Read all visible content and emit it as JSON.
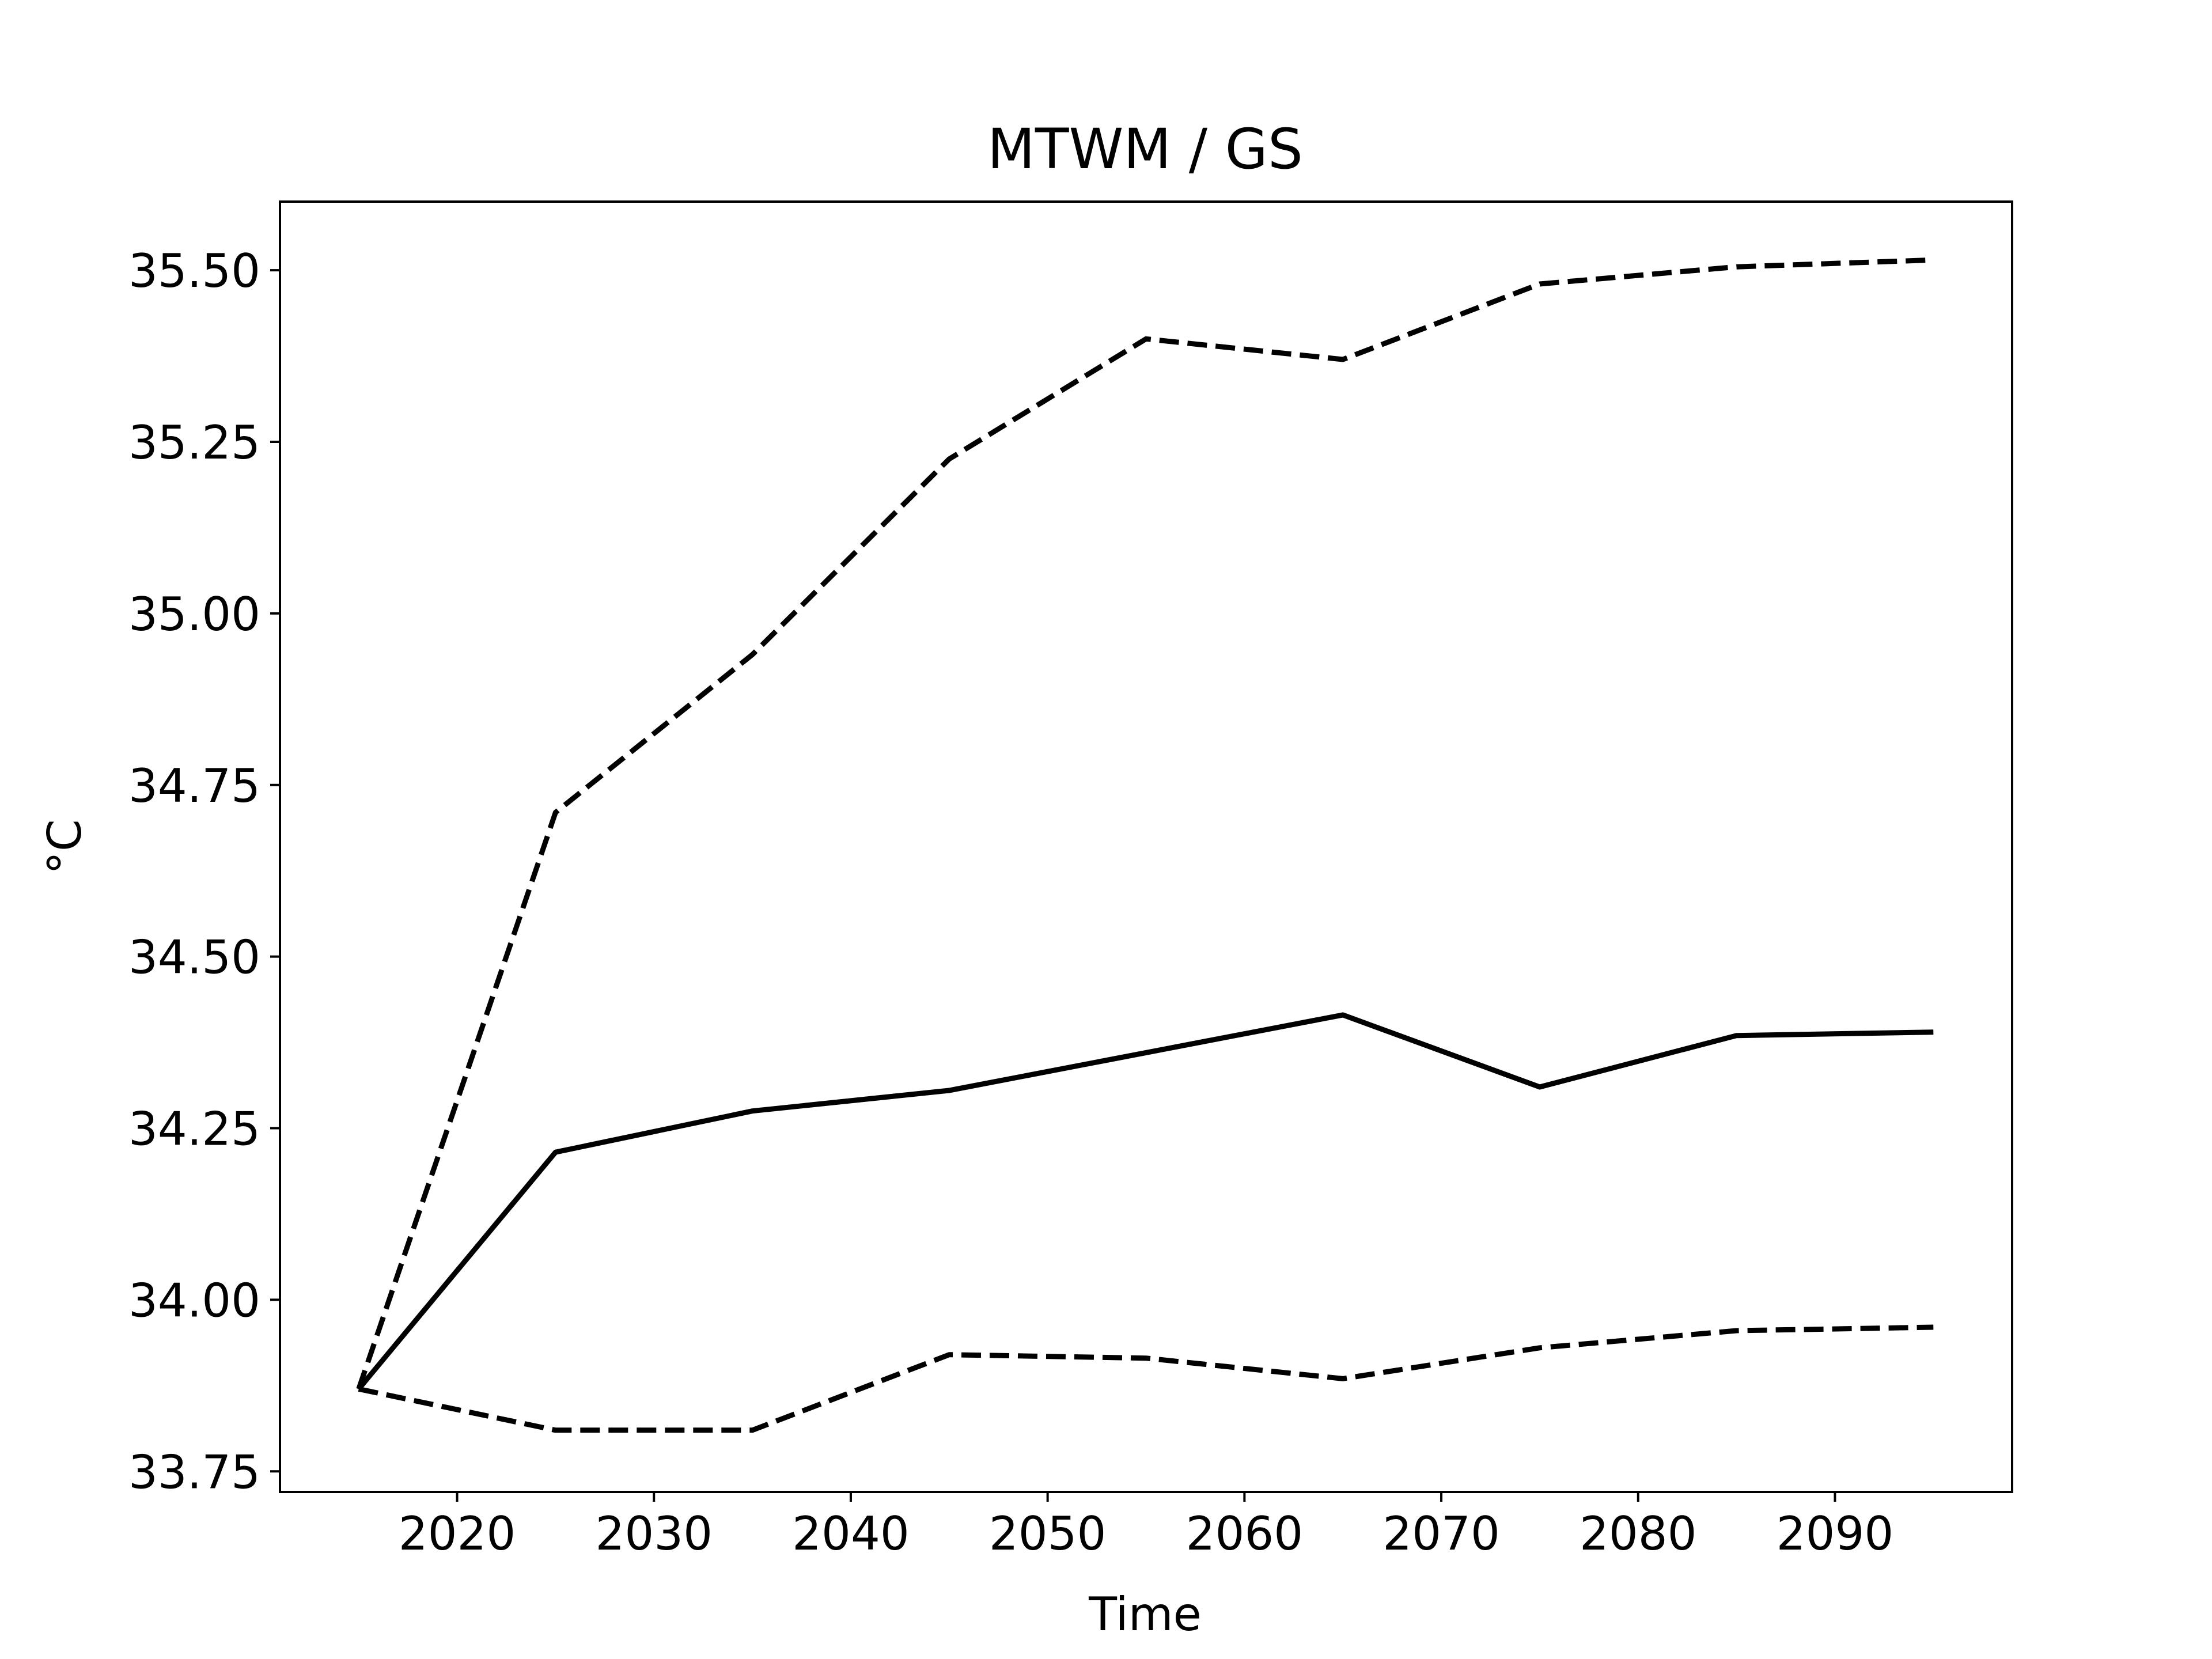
{
  "chart_data": {
    "type": "line",
    "title": "MTWM / GS",
    "xlabel": "Time",
    "ylabel": "°C",
    "x": [
      2015,
      2025,
      2035,
      2045,
      2055,
      2065,
      2075,
      2085,
      2095
    ],
    "xlim": [
      2011,
      2099
    ],
    "ylim": [
      33.72,
      35.6
    ],
    "xticks": [
      2020,
      2030,
      2040,
      2050,
      2060,
      2070,
      2080,
      2090
    ],
    "xtick_labels": [
      "2020",
      "2030",
      "2040",
      "2050",
      "2060",
      "2070",
      "2080",
      "2090"
    ],
    "yticks": [
      33.75,
      34.0,
      34.25,
      34.5,
      34.75,
      35.0,
      35.25,
      35.5
    ],
    "ytick_labels": [
      "33.75",
      "34.00",
      "34.25",
      "34.50",
      "34.75",
      "35.00",
      "35.25",
      "35.50"
    ],
    "grid": false,
    "series": [
      {
        "style": "solid",
        "color": "#000000",
        "values": [
          33.87,
          34.215,
          34.275,
          34.305,
          34.36,
          34.415,
          34.31,
          34.385,
          34.39
        ]
      },
      {
        "style": "dashed",
        "color": "#000000",
        "values": [
          33.87,
          34.71,
          34.94,
          35.225,
          35.4,
          35.37,
          35.48,
          35.505,
          35.515
        ]
      },
      {
        "style": "dashed",
        "color": "#000000",
        "values": [
          33.87,
          33.81,
          33.81,
          33.92,
          33.915,
          33.885,
          33.93,
          33.955,
          33.96
        ]
      }
    ]
  }
}
